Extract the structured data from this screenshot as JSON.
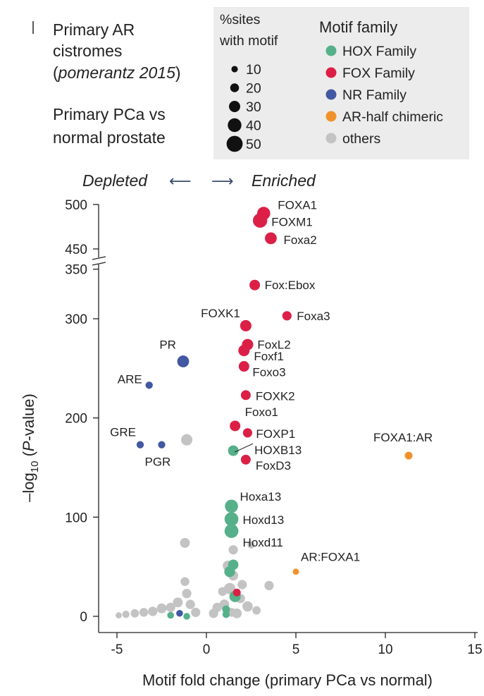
{
  "chart_data": {
    "type": "scatter",
    "title_lines": [
      "Primary AR",
      "cistromes",
      "(pomerantz 2015)",
      "Primary PCa vs",
      "normal prostate"
    ],
    "title_italic_part": "pomerantz 2015",
    "xlabel": "Motif fold change (primary PCa vs normal)",
    "ylabel_prefix": "–log",
    "ylabel_sub": "10",
    "ylabel_open": " (",
    "ylabel_italic": "P",
    "ylabel_close": "-value)",
    "xlim": [
      -6.5,
      15
    ],
    "x_ticks": [
      -5,
      0,
      5,
      10,
      15
    ],
    "y_ticks_lower": [
      0,
      100,
      200,
      300,
      350
    ],
    "y_ticks_upper": [
      450,
      500
    ],
    "axis_break": {
      "lower_max": 360,
      "upper_min": 445
    },
    "direction_labels": {
      "depleted": "Depleted",
      "enriched": "Enriched",
      "left_arrow": "⟵",
      "right_arrow": "⟶"
    },
    "size_legend": {
      "title_lines": [
        "%sites",
        "with motif"
      ],
      "entries": [
        10,
        20,
        30,
        40,
        50
      ]
    },
    "family_legend": {
      "title": "Motif family",
      "entries": [
        {
          "name": "HOX Family",
          "color": "#56b08a"
        },
        {
          "name": "FOX Family",
          "color": "#dc1f46"
        },
        {
          "name": "NR Family",
          "color": "#4358a3"
        },
        {
          "name": "AR-half chimeric",
          "color": "#f0922b"
        },
        {
          "name": "others",
          "color": "#c3c3c3"
        }
      ]
    },
    "labeled_points": [
      {
        "label": "FOXA1",
        "x": 3.2,
        "y": 490,
        "family": "FOX Family",
        "pct": 35
      },
      {
        "label": "FOXM1",
        "x": 3.0,
        "y": 482,
        "family": "FOX Family",
        "pct": 40
      },
      {
        "label": "Foxa2",
        "x": 3.6,
        "y": 462,
        "family": "FOX Family",
        "pct": 30
      },
      {
        "label": "Fox:Ebox",
        "x": 2.7,
        "y": 334,
        "family": "FOX Family",
        "pct": 25
      },
      {
        "label": "Foxa3",
        "x": 4.5,
        "y": 303,
        "family": "FOX Family",
        "pct": 20
      },
      {
        "label": "FOXK1",
        "x": 2.2,
        "y": 293,
        "family": "FOX Family",
        "pct": 28
      },
      {
        "label": "FoxL2",
        "x": 2.3,
        "y": 274,
        "family": "FOX Family",
        "pct": 28
      },
      {
        "label": "Foxf1",
        "x": 2.1,
        "y": 268,
        "family": "FOX Family",
        "pct": 28
      },
      {
        "label": "Foxo3",
        "x": 2.1,
        "y": 252,
        "family": "FOX Family",
        "pct": 25
      },
      {
        "label": "FOXK2",
        "x": 2.2,
        "y": 223,
        "family": "FOX Family",
        "pct": 22
      },
      {
        "label": "Foxo1",
        "x": 1.6,
        "y": 192,
        "family": "FOX Family",
        "pct": 25
      },
      {
        "label": "FOXP1",
        "x": 2.3,
        "y": 185,
        "family": "FOX Family",
        "pct": 20
      },
      {
        "label": "HOXB13",
        "x": 1.5,
        "y": 167,
        "family": "HOX Family",
        "pct": 25
      },
      {
        "label": "FoxD3",
        "x": 2.2,
        "y": 158,
        "family": "FOX Family",
        "pct": 22
      },
      {
        "label": "Hoxa13",
        "x": 1.4,
        "y": 111,
        "family": "HOX Family",
        "pct": 35
      },
      {
        "label": "Hoxd13",
        "x": 1.4,
        "y": 98,
        "family": "HOX Family",
        "pct": 38
      },
      {
        "label": "Hoxd11",
        "x": 1.4,
        "y": 86,
        "family": "HOX Family",
        "pct": 38
      },
      {
        "label": "PR",
        "x": -1.3,
        "y": 257,
        "family": "NR Family",
        "pct": 30
      },
      {
        "label": "ARE",
        "x": -3.2,
        "y": 233,
        "family": "NR Family",
        "pct": 12
      },
      {
        "label": "GRE",
        "x": -3.7,
        "y": 173,
        "family": "NR Family",
        "pct": 12
      },
      {
        "label": "PGR",
        "x": -2.5,
        "y": 173,
        "family": "NR Family",
        "pct": 12
      },
      {
        "label": "FOXA1:AR",
        "x": 11.3,
        "y": 162,
        "family": "AR-half chimeric",
        "pct": 14
      },
      {
        "label": "AR:FOXA1",
        "x": 5.0,
        "y": 45,
        "family": "AR-half chimeric",
        "pct": 8
      }
    ],
    "other_points": [
      {
        "x": -1.1,
        "y": 178,
        "family": "others",
        "pct": 28
      },
      {
        "x": -1.2,
        "y": 74,
        "family": "others",
        "pct": 22
      },
      {
        "x": 1.5,
        "y": 67,
        "family": "others",
        "pct": 20
      },
      {
        "x": 2.5,
        "y": 72,
        "family": "others",
        "pct": 12
      },
      {
        "x": 3.5,
        "y": 31,
        "family": "others",
        "pct": 20
      },
      {
        "x": 1.2,
        "y": 51,
        "family": "others",
        "pct": 24
      },
      {
        "x": 1.5,
        "y": 41,
        "family": "others",
        "pct": 22
      },
      {
        "x": 1.3,
        "y": 28,
        "family": "others",
        "pct": 28
      },
      {
        "x": 2.0,
        "y": 32,
        "family": "others",
        "pct": 20
      },
      {
        "x": 2.3,
        "y": 10,
        "family": "others",
        "pct": 24
      },
      {
        "x": 1.7,
        "y": 3,
        "family": "others",
        "pct": 22
      },
      {
        "x": 1.0,
        "y": 12,
        "family": "others",
        "pct": 22
      },
      {
        "x": 0.6,
        "y": 9,
        "family": "others",
        "pct": 20
      },
      {
        "x": 0.4,
        "y": 3,
        "family": "others",
        "pct": 20
      },
      {
        "x": -1.2,
        "y": 35,
        "family": "others",
        "pct": 18
      },
      {
        "x": -1.1,
        "y": 23,
        "family": "others",
        "pct": 20
      },
      {
        "x": -1.6,
        "y": 14,
        "family": "others",
        "pct": 22
      },
      {
        "x": -2.0,
        "y": 9,
        "family": "others",
        "pct": 20
      },
      {
        "x": -2.5,
        "y": 8,
        "family": "others",
        "pct": 22
      },
      {
        "x": -3.0,
        "y": 5,
        "family": "others",
        "pct": 20
      },
      {
        "x": -3.5,
        "y": 4,
        "family": "others",
        "pct": 18
      },
      {
        "x": -4.0,
        "y": 3,
        "family": "others",
        "pct": 16
      },
      {
        "x": -4.5,
        "y": 2,
        "family": "others",
        "pct": 12
      },
      {
        "x": -4.9,
        "y": 1,
        "family": "others",
        "pct": 8
      },
      {
        "x": -0.9,
        "y": 12,
        "family": "others",
        "pct": 20
      },
      {
        "x": -0.6,
        "y": 4,
        "family": "others",
        "pct": 20
      },
      {
        "x": 0.9,
        "y": 25,
        "family": "others",
        "pct": 18
      },
      {
        "x": 2.8,
        "y": 6,
        "family": "others",
        "pct": 16
      },
      {
        "x": 1.9,
        "y": 18,
        "family": "others",
        "pct": 20
      },
      {
        "x": 1.4,
        "y": 4,
        "family": "others",
        "pct": 18
      }
    ],
    "minor_points": [
      {
        "x": 1.5,
        "y": 52,
        "family": "HOX Family",
        "pct": 24
      },
      {
        "x": 1.3,
        "y": 45,
        "family": "HOX Family",
        "pct": 26
      },
      {
        "x": 1.6,
        "y": 20,
        "family": "HOX Family",
        "pct": 28
      },
      {
        "x": 1.1,
        "y": 7,
        "family": "HOX Family",
        "pct": 14
      },
      {
        "x": 1.1,
        "y": 2,
        "family": "HOX Family",
        "pct": 12
      },
      {
        "x": -2.0,
        "y": 1,
        "family": "HOX Family",
        "pct": 10
      },
      {
        "x": -1.1,
        "y": 0,
        "family": "HOX Family",
        "pct": 10
      },
      {
        "x": 1.7,
        "y": 24,
        "family": "FOX Family",
        "pct": 14
      },
      {
        "x": -1.5,
        "y": 3,
        "family": "NR Family",
        "pct": 10
      }
    ]
  }
}
